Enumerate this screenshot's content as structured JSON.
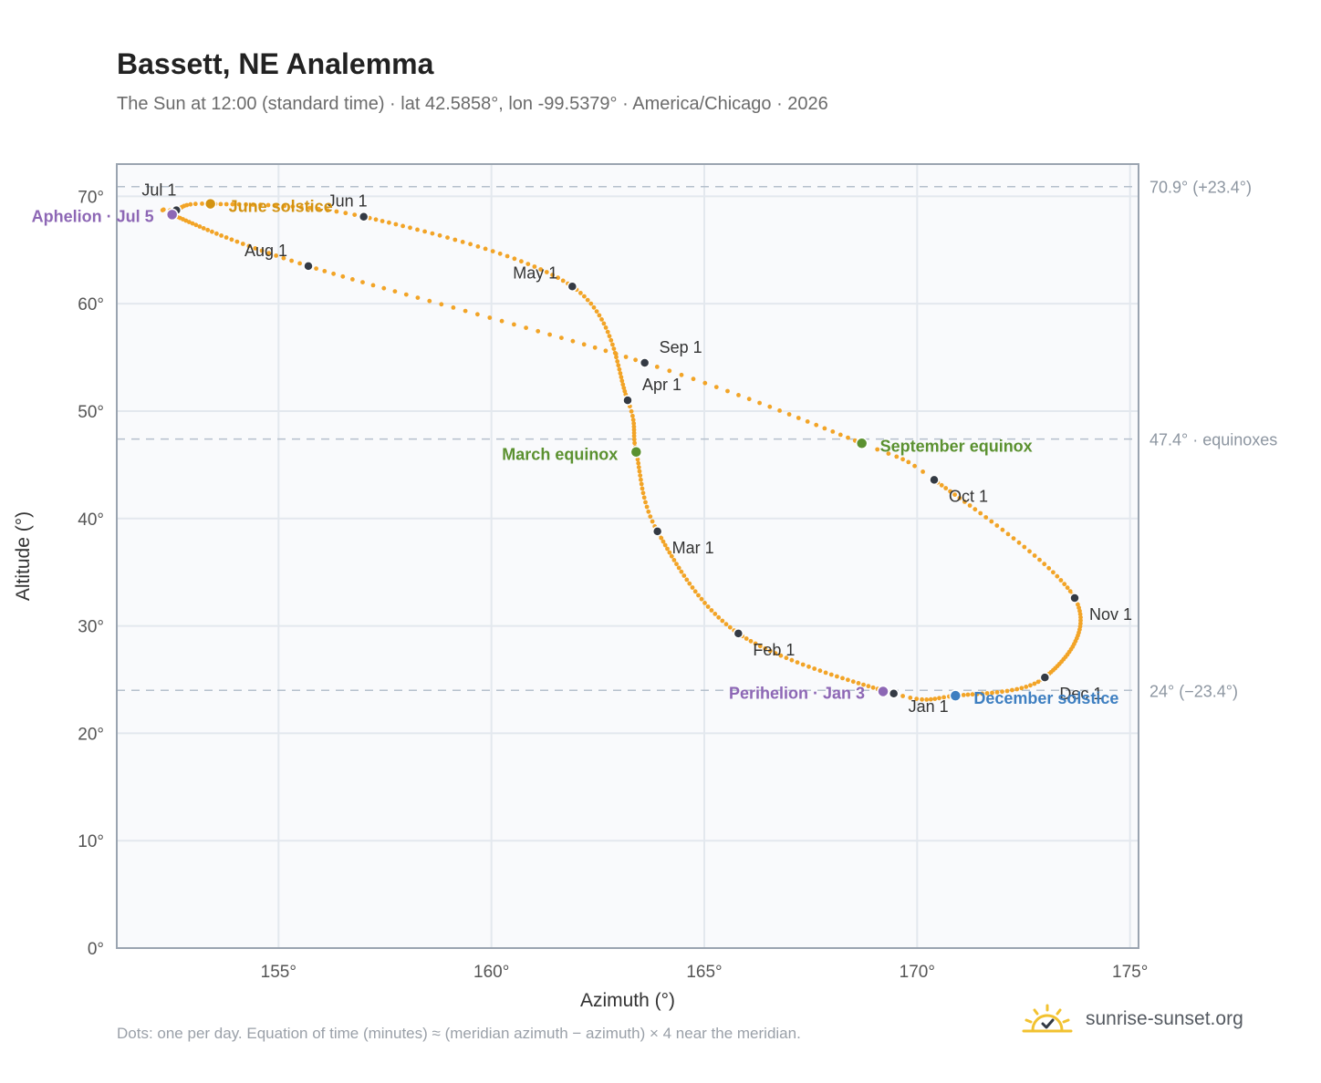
{
  "title": "Bassett, NE Analemma",
  "subtitle": "The Sun at 12:00 (standard time) · lat 42.5858°, lon -99.5379° · America/Chicago · 2026",
  "footnote": "Dots: one per day. Equation of time (minutes) ≈ (meridian azimuth − azimuth) × 4 near the meridian.",
  "brand": "sunrise-sunset.org",
  "colors": {
    "trace": "#f2a427",
    "month": "#343a44",
    "solstice_june": "#d39312",
    "equinox": "#5b9130",
    "solstice_december": "#3e7fc1",
    "apsis": "#8d67b5",
    "reference": "#b5c0cc",
    "plot_bg": "#f9fafc",
    "axis": "#9aa4b0"
  },
  "chart_data": {
    "type": "scatter",
    "xlabel": "Azimuth (°)",
    "ylabel": "Altitude (°)",
    "xlim": [
      151.2,
      175.2
    ],
    "ylim": [
      0,
      73
    ],
    "xticks": [
      155,
      160,
      165,
      170,
      175
    ],
    "yticks": [
      0,
      10,
      20,
      30,
      40,
      50,
      60,
      70
    ],
    "tick_suffix": "°",
    "grid": true,
    "reference_lines": [
      {
        "y": 70.9,
        "label": "70.9° (+23.4°)"
      },
      {
        "y": 47.4,
        "label": "47.4° · equinoxes"
      },
      {
        "y": 24.0,
        "label": "24° (−23.4°)"
      }
    ],
    "path": [
      {
        "doy": 1,
        "az": 169.45,
        "alt": 23.7
      },
      {
        "doy": 32,
        "az": 165.8,
        "alt": 29.3
      },
      {
        "doy": 60,
        "az": 163.9,
        "alt": 38.8
      },
      {
        "doy": 78,
        "az": 163.4,
        "alt": 46.2
      },
      {
        "doy": 91,
        "az": 163.2,
        "alt": 51.0
      },
      {
        "doy": 121,
        "az": 161.9,
        "alt": 61.6
      },
      {
        "doy": 152,
        "az": 157.0,
        "alt": 68.1
      },
      {
        "doy": 172,
        "az": 153.4,
        "alt": 69.3
      },
      {
        "doy": 182,
        "az": 152.6,
        "alt": 68.7
      },
      {
        "doy": 186,
        "az": 152.5,
        "alt": 68.3
      },
      {
        "doy": 213,
        "az": 155.7,
        "alt": 63.5
      },
      {
        "doy": 244,
        "az": 163.6,
        "alt": 54.5
      },
      {
        "doy": 266,
        "az": 168.7,
        "alt": 47.0
      },
      {
        "doy": 274,
        "az": 170.4,
        "alt": 43.6
      },
      {
        "doy": 305,
        "az": 173.7,
        "alt": 32.6
      },
      {
        "doy": 335,
        "az": 173.0,
        "alt": 25.2
      },
      {
        "doy": 355,
        "az": 170.9,
        "alt": 23.5
      },
      {
        "doy": 366,
        "az": 169.45,
        "alt": 23.7
      }
    ],
    "month_points": [
      {
        "label": "Jan 1",
        "az": 169.45,
        "alt": 23.7
      },
      {
        "label": "Feb 1",
        "az": 165.8,
        "alt": 29.3
      },
      {
        "label": "Mar 1",
        "az": 163.9,
        "alt": 38.8
      },
      {
        "label": "Apr 1",
        "az": 163.2,
        "alt": 51.0
      },
      {
        "label": "May 1",
        "az": 161.9,
        "alt": 61.6
      },
      {
        "label": "Jun 1",
        "az": 157.0,
        "alt": 68.1
      },
      {
        "label": "Jul 1",
        "az": 152.6,
        "alt": 68.7
      },
      {
        "label": "Aug 1",
        "az": 155.7,
        "alt": 63.5
      },
      {
        "label": "Sep 1",
        "az": 163.6,
        "alt": 54.5
      },
      {
        "label": "Oct 1",
        "az": 170.4,
        "alt": 43.6
      },
      {
        "label": "Nov 1",
        "az": 173.7,
        "alt": 32.6
      },
      {
        "label": "Dec 1",
        "az": 173.0,
        "alt": 25.2
      }
    ],
    "events": [
      {
        "label": "June solstice",
        "az": 153.4,
        "alt": 69.3,
        "kind": "solstice_june"
      },
      {
        "label": "March equinox",
        "az": 163.4,
        "alt": 46.2,
        "kind": "equinox"
      },
      {
        "label": "September equinox",
        "az": 168.7,
        "alt": 47.0,
        "kind": "equinox"
      },
      {
        "label": "December solstice",
        "az": 170.9,
        "alt": 23.5,
        "kind": "solstice_december"
      },
      {
        "label": "Aphelion · Jul 5",
        "az": 152.5,
        "alt": 68.3,
        "kind": "apsis"
      },
      {
        "label": "Perihelion · Jan 3",
        "az": 169.2,
        "alt": 23.9,
        "kind": "apsis"
      }
    ]
  }
}
